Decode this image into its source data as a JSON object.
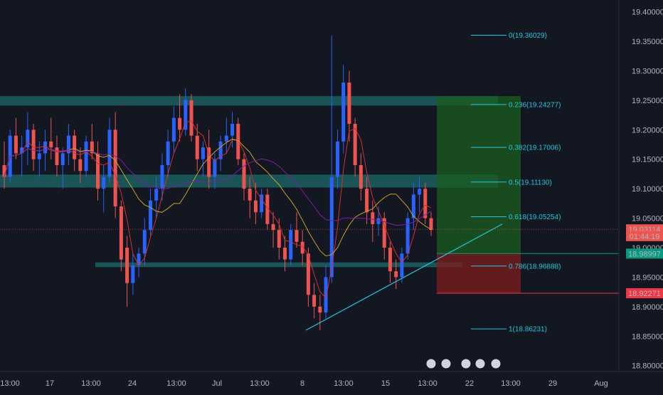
{
  "chart_data": {
    "type": "candlestick",
    "title": "",
    "background": "#131722",
    "colors": {
      "up": "#2962ff",
      "down": "#ef5350",
      "text": "#b2b5be",
      "fib": "#26c6da",
      "zone": "#1d6a6a",
      "ma_slow": "#c9a227",
      "ma_purple": "#7b1fa2",
      "ma_red": "#d32f2f"
    },
    "ylim": [
      18.79,
      19.42
    ],
    "y_ticks": [
      "18.80000",
      "18.85000",
      "18.90000",
      "18.95000",
      "19.00000",
      "19.05000",
      "19.10000",
      "19.15000",
      "19.20000",
      "19.25000",
      "19.30000",
      "19.35000",
      "19.40000"
    ],
    "x_ticks": [
      "13:00",
      "17",
      "13:00",
      "24",
      "13:00",
      "Jul",
      "13:00",
      "8",
      "13:00",
      "15",
      "13:00",
      "22",
      "13:00",
      "29",
      "Aug"
    ],
    "price_labels": [
      {
        "text": "19.03114",
        "value": 19.03114,
        "color": "#ef5350"
      },
      {
        "text": "01:44:19",
        "value": 19.0195,
        "color": "#ef5350"
      },
      {
        "text": "18.98997",
        "value": 18.98997,
        "color": "#089981"
      },
      {
        "text": "18.92271",
        "value": 18.92271,
        "color": "#f23645"
      }
    ],
    "fib_levels": [
      {
        "ratio": "0",
        "value": 19.36029,
        "label": "0(19.36029)"
      },
      {
        "ratio": "0.236",
        "value": 19.24277,
        "label": "0.236(19.24277)"
      },
      {
        "ratio": "0.382",
        "value": 19.17006,
        "label": "0.382(19.17006)"
      },
      {
        "ratio": "0.5",
        "value": 19.1113,
        "label": "0.5(19.11130)"
      },
      {
        "ratio": "0.618",
        "value": 19.05254,
        "label": "0.618(19.05254)"
      },
      {
        "ratio": "0.786",
        "value": 18.96888,
        "label": "0.786(18.96888)"
      },
      {
        "ratio": "1",
        "value": 18.86231,
        "label": "1(18.86231)"
      }
    ],
    "zones": [
      {
        "top": 19.257,
        "bottom": 19.241
      },
      {
        "top": 19.124,
        "bottom": 19.102
      },
      {
        "top": 18.975,
        "bottom": 18.967
      }
    ],
    "position": {
      "entry": 18.98997,
      "take_profit": 19.257,
      "stop_loss": 18.92271
    },
    "trendline": {
      "from": 18.86,
      "to": 19.04
    },
    "ohlc": [
      [
        19.14,
        19.18,
        19.1,
        19.12
      ],
      [
        19.12,
        19.2,
        19.11,
        19.19
      ],
      [
        19.19,
        19.22,
        19.15,
        19.16
      ],
      [
        19.16,
        19.19,
        19.12,
        19.17
      ],
      [
        19.17,
        19.23,
        19.14,
        19.2
      ],
      [
        19.2,
        19.21,
        19.13,
        19.15
      ],
      [
        19.15,
        19.18,
        19.12,
        19.16
      ],
      [
        19.16,
        19.2,
        19.13,
        19.18
      ],
      [
        19.18,
        19.22,
        19.15,
        19.17
      ],
      [
        19.17,
        19.19,
        19.12,
        19.14
      ],
      [
        19.14,
        19.17,
        19.1,
        19.16
      ],
      [
        19.16,
        19.21,
        19.14,
        19.19
      ],
      [
        19.19,
        19.2,
        19.13,
        19.15
      ],
      [
        19.15,
        19.17,
        19.11,
        19.13
      ],
      [
        19.13,
        19.19,
        19.12,
        19.18
      ],
      [
        19.18,
        19.21,
        19.15,
        19.16
      ],
      [
        19.16,
        19.18,
        19.08,
        19.1
      ],
      [
        19.1,
        19.14,
        19.06,
        19.12
      ],
      [
        19.12,
        19.22,
        19.11,
        19.2
      ],
      [
        19.2,
        19.23,
        19.05,
        19.07
      ],
      [
        19.07,
        19.08,
        18.96,
        18.98
      ],
      [
        19.0,
        19.02,
        18.9,
        18.94
      ],
      [
        18.94,
        18.99,
        18.92,
        18.97
      ],
      [
        18.97,
        19.0,
        18.95,
        18.99
      ],
      [
        18.99,
        19.05,
        18.97,
        19.03
      ],
      [
        19.03,
        19.1,
        19.02,
        19.08
      ],
      [
        19.08,
        19.12,
        19.05,
        19.1
      ],
      [
        19.1,
        19.16,
        19.08,
        19.14
      ],
      [
        19.14,
        19.2,
        19.12,
        19.18
      ],
      [
        19.18,
        19.24,
        19.16,
        19.22
      ],
      [
        19.22,
        19.26,
        19.18,
        19.2
      ],
      [
        19.2,
        19.27,
        19.19,
        19.25
      ],
      [
        19.25,
        19.26,
        19.18,
        19.19
      ],
      [
        19.19,
        19.21,
        19.13,
        19.15
      ],
      [
        19.15,
        19.18,
        19.12,
        19.17
      ],
      [
        19.17,
        19.2,
        19.1,
        19.12
      ],
      [
        19.12,
        19.16,
        19.1,
        19.15
      ],
      [
        19.15,
        19.19,
        19.13,
        19.18
      ],
      [
        19.18,
        19.22,
        19.16,
        19.19
      ],
      [
        19.19,
        19.23,
        19.17,
        19.21
      ],
      [
        19.21,
        19.22,
        19.14,
        19.15
      ],
      [
        19.15,
        19.16,
        19.08,
        19.1
      ],
      [
        19.1,
        19.12,
        19.05,
        19.08
      ],
      [
        19.08,
        19.11,
        19.04,
        19.06
      ],
      [
        19.06,
        19.1,
        19.05,
        19.09
      ],
      [
        19.09,
        19.1,
        19.03,
        19.04
      ],
      [
        19.04,
        19.06,
        19.0,
        19.03
      ],
      [
        19.03,
        19.05,
        18.98,
        19.0
      ],
      [
        19.0,
        19.02,
        18.96,
        18.98
      ],
      [
        18.98,
        19.04,
        18.97,
        19.03
      ],
      [
        19.03,
        19.06,
        19.0,
        19.01
      ],
      [
        19.01,
        19.03,
        18.97,
        18.99
      ],
      [
        18.99,
        19.0,
        18.9,
        18.92
      ],
      [
        18.92,
        18.94,
        18.88,
        18.9
      ],
      [
        18.9,
        18.92,
        18.86,
        18.89
      ],
      [
        18.89,
        18.97,
        18.88,
        18.95
      ],
      [
        18.95,
        19.36,
        18.94,
        19.12
      ],
      [
        19.12,
        19.2,
        19.1,
        19.18
      ],
      [
        19.18,
        19.31,
        19.16,
        19.28
      ],
      [
        19.28,
        19.3,
        19.18,
        19.21
      ],
      [
        19.21,
        19.22,
        19.12,
        19.14
      ],
      [
        19.14,
        19.16,
        19.08,
        19.1
      ],
      [
        19.1,
        19.12,
        19.04,
        19.06
      ],
      [
        19.06,
        19.08,
        19.01,
        19.04
      ],
      [
        19.04,
        19.07,
        19.02,
        19.05
      ],
      [
        19.05,
        19.06,
        18.98,
        19.0
      ],
      [
        19.0,
        19.01,
        18.94,
        18.96
      ],
      [
        18.96,
        18.98,
        18.93,
        18.95
      ],
      [
        18.95,
        19.0,
        18.94,
        18.99
      ],
      [
        18.99,
        19.06,
        18.98,
        19.05
      ],
      [
        19.05,
        19.11,
        19.03,
        19.09
      ],
      [
        19.09,
        19.12,
        19.06,
        19.1
      ],
      [
        19.1,
        19.11,
        19.04,
        19.05
      ],
      [
        19.05,
        19.06,
        19.02,
        19.03
      ]
    ]
  }
}
